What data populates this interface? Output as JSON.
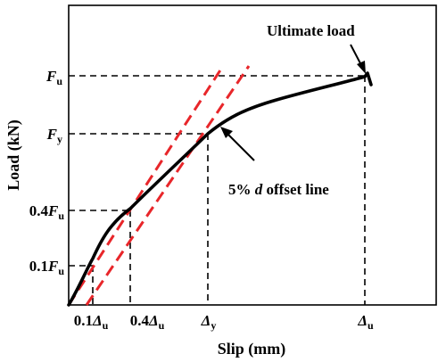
{
  "axes": {
    "ylabel": "Load (kN)",
    "xlabel": "Slip (mm)"
  },
  "y_ticks": {
    "fu": {
      "main": "F",
      "sub": "u",
      "pre": "",
      "suffix": ""
    },
    "fy": {
      "main": "F",
      "sub": "y",
      "pre": "",
      "suffix": ""
    },
    "p04": {
      "main": "F",
      "sub": "u",
      "pre": "0.4",
      "suffix": ""
    },
    "p01": {
      "main": "F",
      "sub": "u",
      "pre": "0.1",
      "suffix": ""
    }
  },
  "x_ticks": {
    "d01": {
      "pre": "0.1",
      "main": "Δ",
      "sub": "u"
    },
    "d04": {
      "pre": "0.4",
      "main": "Δ",
      "sub": "u"
    },
    "dy": {
      "pre": "",
      "main": "Δ",
      "sub": "y"
    },
    "du": {
      "pre": "",
      "main": "Δ",
      "sub": "u"
    }
  },
  "annotations": {
    "ultimate": "Ultimate load",
    "offset_pre": "5% ",
    "offset_d": "d",
    "offset_post": " offset line"
  },
  "colors": {
    "curve": "#000000",
    "offset_lines": "#e8262a",
    "guides": "#000000"
  }
}
